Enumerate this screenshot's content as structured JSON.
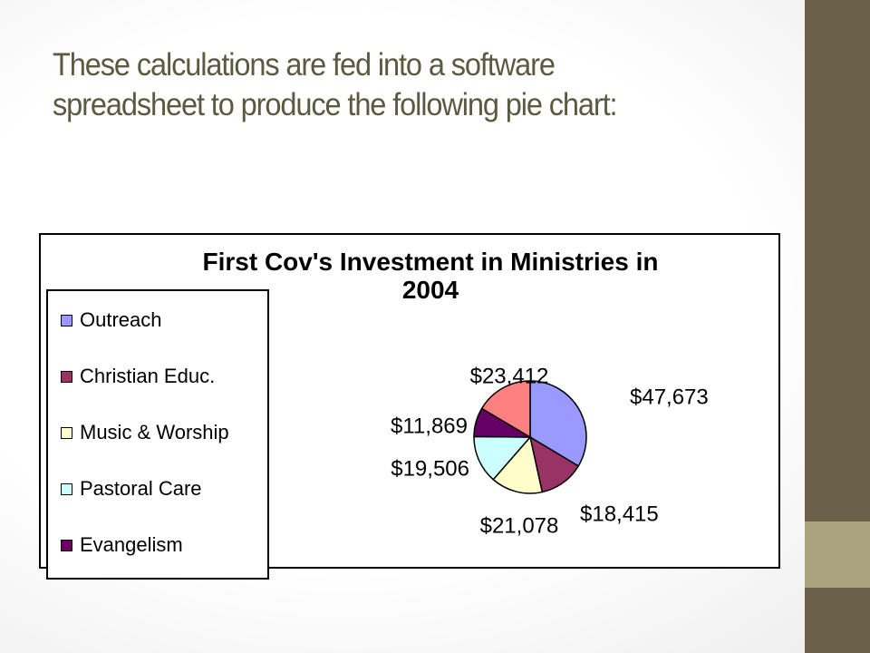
{
  "slide": {
    "title_line1": "These calculations are fed into a software",
    "title_line2": "spreadsheet to produce the following pie chart:"
  },
  "chart_data": {
    "type": "pie",
    "title_line1": "First Cov's Investment in Ministries in",
    "title_line2": "2004",
    "legend_placement": "left",
    "slices": [
      {
        "name": "Outreach",
        "value": 47673,
        "label": "$47,673",
        "color": "#9999ff"
      },
      {
        "name": "Christian Educ.",
        "value": 18415,
        "label": "$18,415",
        "color": "#993366"
      },
      {
        "name": "Music & Worship",
        "value": 21078,
        "label": "$21,078",
        "color": "#ffffcc"
      },
      {
        "name": "Pastoral Care",
        "value": 19506,
        "label": "$19,506",
        "color": "#ccffff"
      },
      {
        "name": "Evangelism",
        "value": 11869,
        "label": "$11,869",
        "color": "#660066"
      },
      {
        "name": "",
        "value": 23412,
        "label": "$23,412",
        "color": "#ff8080"
      }
    ]
  }
}
